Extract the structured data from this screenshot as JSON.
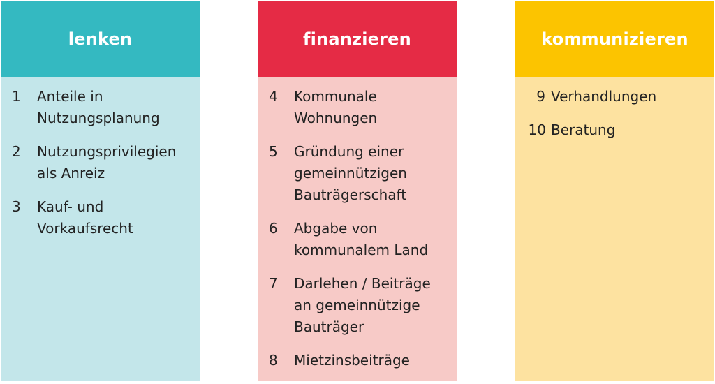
{
  "columns": [
    {
      "title": "lenken",
      "header_color": "#34b9c1",
      "body_color": "#c3e6ea",
      "items": [
        {
          "num": "1",
          "text": "Anteile in Nutzungsplanung"
        },
        {
          "num": "2",
          "text": "Nutzungsprivilegien als Anreiz"
        },
        {
          "num": "3",
          "text": "Kauf- und Vorkaufsrecht"
        }
      ]
    },
    {
      "title": "finanzieren",
      "header_color": "#e52b45",
      "body_color": "#f7cac7",
      "items": [
        {
          "num": "4",
          "text": "Kommunale Wohnungen"
        },
        {
          "num": "5",
          "text": "Gründung einer gemeinnützigen Bauträgerschaft"
        },
        {
          "num": "6",
          "text": "Abgabe von kommunalem Land"
        },
        {
          "num": "7",
          "text": "Darlehen / Beiträge an gemeinnützige Bauträger"
        },
        {
          "num": "8",
          "text": "Mietzinsbeiträge"
        }
      ]
    },
    {
      "title": "kommunizieren",
      "header_color": "#fcc400",
      "body_color": "#fde2a0",
      "items": [
        {
          "num": "9",
          "text": "Verhandlungen"
        },
        {
          "num": "10",
          "text": "Beratung"
        }
      ]
    }
  ]
}
